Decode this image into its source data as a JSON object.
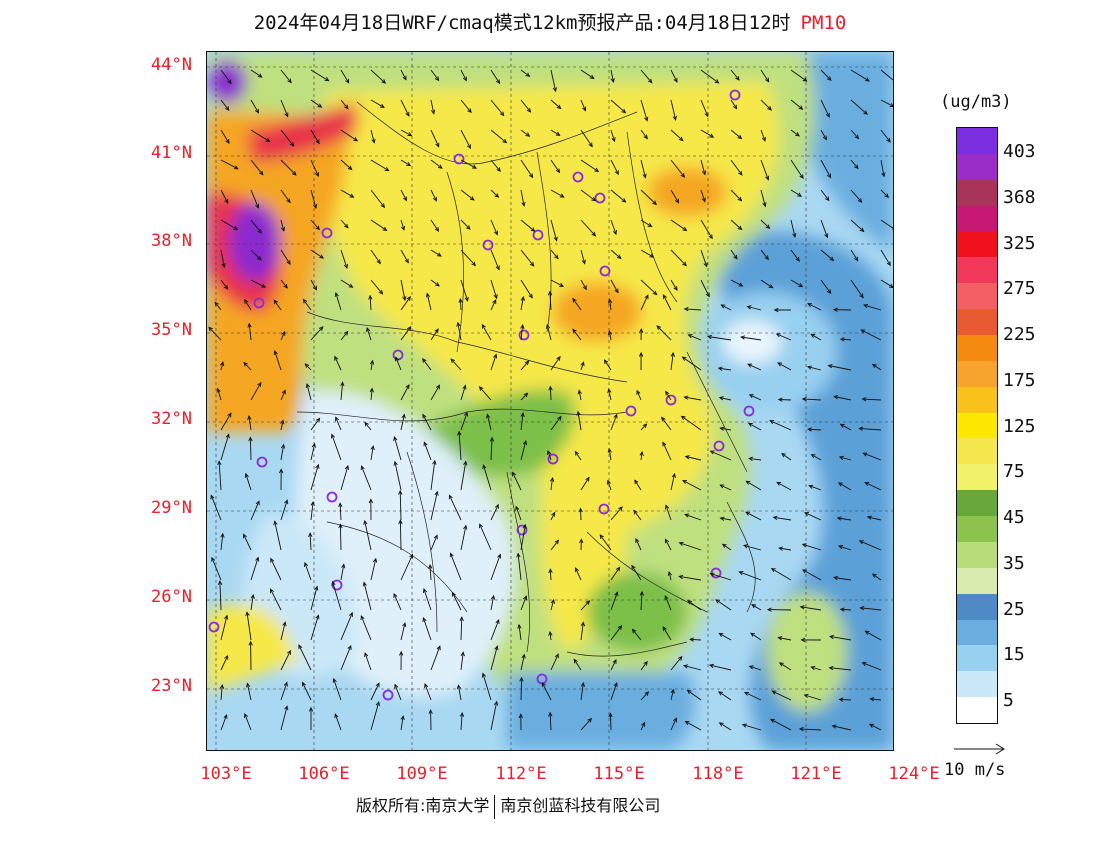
{
  "title": {
    "main": "2024年04月18日WRF/cmaq模式12km预报产品:04月18日12时",
    "pollutant": "PM10"
  },
  "axes": {
    "lat_labels": [
      "44°N",
      "41°N",
      "38°N",
      "35°N",
      "32°N",
      "29°N",
      "26°N",
      "23°N"
    ],
    "lon_labels": [
      "103°E",
      "106°E",
      "109°E",
      "112°E",
      "115°E",
      "118°E",
      "121°E",
      "124°E"
    ]
  },
  "colorbar": {
    "unit": "(ug/m3)",
    "levels": [
      "403",
      "368",
      "325",
      "275",
      "225",
      "175",
      "125",
      "75",
      "45",
      "35",
      "25",
      "15",
      "5"
    ],
    "colors": [
      "#7b2de0",
      "#9a2cc8",
      "#a8345a",
      "#c81875",
      "#f2121e",
      "#f2385a",
      "#f26066",
      "#e85a30",
      "#f58a10",
      "#f6a42e",
      "#f9c21a",
      "#fde600",
      "#f4e84e",
      "#f2f26a",
      "#68a83a",
      "#8cc24e",
      "#b8dc78",
      "#d8ecb0",
      "#4e8ac6",
      "#6aaee0",
      "#98d0f0",
      "#cbe8f8",
      "#ffffff"
    ]
  },
  "wind": {
    "reference": "10 m/s"
  },
  "footer": {
    "left": "版权所有:南京大学",
    "right": "南京创蓝科技有限公司"
  },
  "colors": {
    "ocean_clean": "#e0f0fa",
    "ocean_low": "#a9d8f2",
    "ocean_mid": "#5ba0d8",
    "land_green": "#7bbf4a",
    "land_light_green": "#bfe07f",
    "land_yellow": "#f6e84a",
    "land_orange": "#f5a623",
    "land_red": "#e8304a",
    "land_purple": "#8b2ccf",
    "label_red": "#e8202a"
  }
}
